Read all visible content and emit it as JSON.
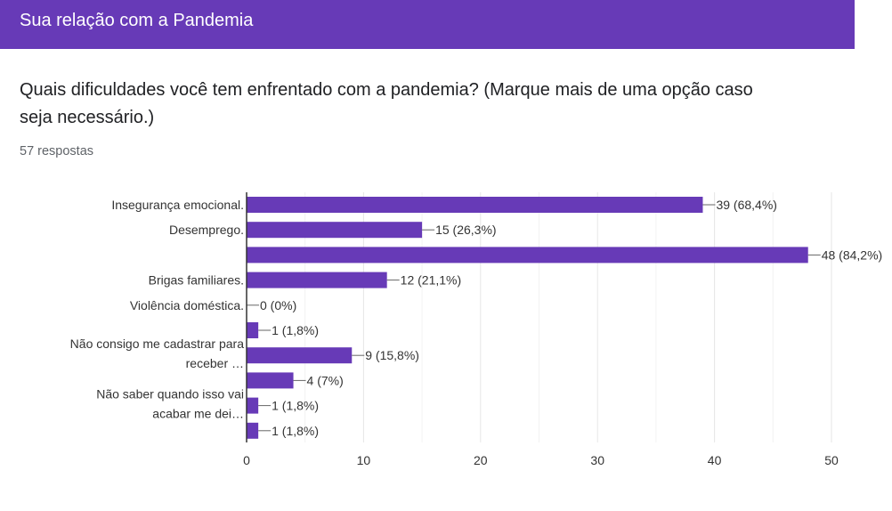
{
  "header": {
    "title": "Sua relação com a Pandemia"
  },
  "question": {
    "line1": "Quais dificuldades você tem enfrentado com a pandemia? (Marque mais de uma opção caso",
    "line2": "seja necessário.)",
    "responses": "57 respostas"
  },
  "colors": {
    "header": "#673ab7",
    "bar": "#673ab7"
  },
  "chart_data": {
    "type": "bar",
    "orientation": "horizontal",
    "categories": [
      [
        "Insegurança emocional."
      ],
      [
        "Desemprego."
      ],
      [],
      [
        "Brigas familiares."
      ],
      [
        "Violência doméstica."
      ],
      [],
      [
        "Não consigo me cadastrar para",
        "receber …"
      ],
      [],
      [
        "Não saber quando isso vai",
        "acabar me dei…"
      ],
      []
    ],
    "values": [
      39,
      15,
      48,
      12,
      0,
      1,
      9,
      4,
      1,
      1
    ],
    "data_labels": [
      "39 (68,4%)",
      "15 (26,3%)",
      "48 (84,2%)",
      "12 (21,1%)",
      "0 (0%)",
      "1 (1,8%)",
      "9 (15,8%)",
      "4 (7%)",
      "1 (1,8%)",
      "1 (1,8%)"
    ],
    "xlim": [
      0,
      50
    ],
    "xticks": [
      "0",
      "10",
      "20",
      "30",
      "40",
      "50"
    ],
    "grid": true
  }
}
